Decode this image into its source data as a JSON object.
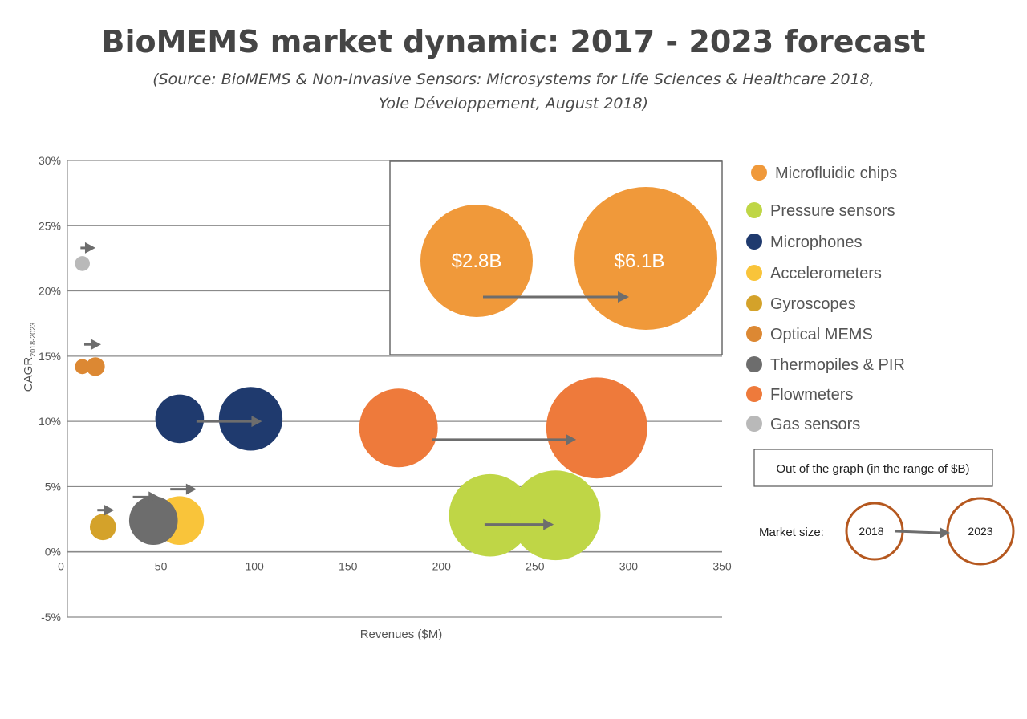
{
  "title": "BioMEMS market dynamic: 2017 - 2023 forecast",
  "subtitle_lines": [
    "(Source: BioMEMS & Non-Invasive Sensors: Microsystems for Life Sciences & Healthcare 2018,",
    "Yole Développement, August 2018)"
  ],
  "chart_data": {
    "type": "scatter",
    "variant": "bubble",
    "xlabel": "Revenues ($M)",
    "ylabel": "CAGR",
    "ylabel_sub": "2018-2023",
    "xlim": [
      0,
      350
    ],
    "ylim": [
      -0.05,
      0.3
    ],
    "x_ticks": [
      "0",
      "50",
      "100",
      "150",
      "200",
      "250",
      "300",
      "350"
    ],
    "y_ticks": [
      "30%",
      "25%",
      "20%",
      "15%",
      "10%",
      "5%",
      "0%",
      "-5%"
    ],
    "grid": "horizontal",
    "legend_position": "right",
    "series": [
      {
        "name": "Microfluidic chips",
        "color": "#F0993A",
        "points": []
      },
      {
        "name": "Pressure sensors",
        "color": "#BFD646",
        "points": [
          {
            "x": 226,
            "y": 0.028,
            "r": 22
          },
          {
            "x": 261,
            "y": 0.028,
            "r": 24
          }
        ]
      },
      {
        "name": "Microphones",
        "color": "#1F3A6E",
        "points": [
          {
            "x": 60,
            "y": 0.102,
            "r": 13
          },
          {
            "x": 98,
            "y": 0.102,
            "r": 17
          }
        ]
      },
      {
        "name": "Accelerometers",
        "color": "#F9C43A",
        "points": [
          {
            "x": 60,
            "y": 0.024,
            "r": 13
          }
        ]
      },
      {
        "name": "Gyroscopes",
        "color": "#D4A22A",
        "points": [
          {
            "x": 19,
            "y": 0.019,
            "r": 7
          }
        ]
      },
      {
        "name": "Optical MEMS",
        "color": "#DC8833",
        "points": [
          {
            "x": 8,
            "y": 0.142,
            "r": 4
          },
          {
            "x": 15,
            "y": 0.142,
            "r": 5
          }
        ]
      },
      {
        "name": "Thermopiles & PIR",
        "color": "#6D6D6D",
        "points": [
          {
            "x": 46,
            "y": 0.024,
            "r": 13
          }
        ]
      },
      {
        "name": "Flowmeters",
        "color": "#EE7A3B",
        "points": [
          {
            "x": 177,
            "y": 0.095,
            "r": 21
          },
          {
            "x": 283,
            "y": 0.095,
            "r": 27
          }
        ]
      },
      {
        "name": "Gas sensors",
        "color": "#B9B9B9",
        "points": [
          {
            "x": 8,
            "y": 0.221,
            "r": 4
          }
        ]
      }
    ],
    "arrows": [
      {
        "x1": 7,
        "x2": 15,
        "y": 0.233
      },
      {
        "x1": 9,
        "x2": 18,
        "y": 0.159
      },
      {
        "x1": 69,
        "x2": 104,
        "y": 0.1
      },
      {
        "x1": 195,
        "x2": 272,
        "y": 0.086
      },
      {
        "x1": 223,
        "x2": 260,
        "y": 0.021
      },
      {
        "x1": 16,
        "x2": 25,
        "y": 0.032
      },
      {
        "x1": 35,
        "x2": 49,
        "y": 0.042
      },
      {
        "x1": 55,
        "x2": 69,
        "y": 0.048
      }
    ],
    "inset": {
      "series": "Microfluidic chips",
      "values": [
        "$2.8B",
        "$6.1B"
      ]
    }
  },
  "legend_note": "Out of the graph (in the range of $B)",
  "market_size": {
    "label": "Market size:",
    "from": "2018",
    "to": "2023",
    "circle_color": "#B5581F"
  },
  "arrow_color": "#6D6D6D"
}
